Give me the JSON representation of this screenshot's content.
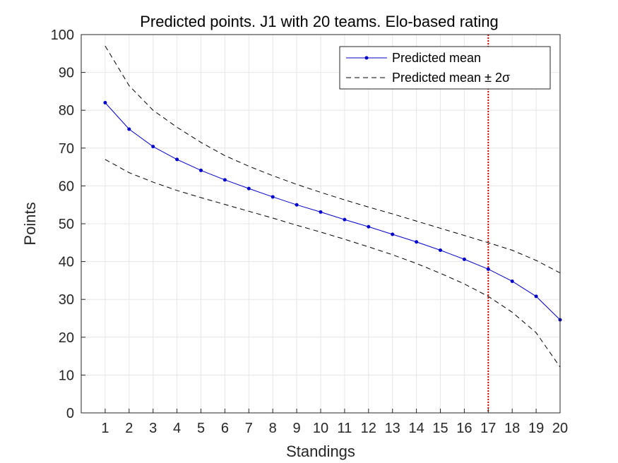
{
  "chart_data": {
    "type": "line",
    "title": "Predicted points. J1 with 20 teams. Elo-based rating",
    "xlabel": "Standings",
    "ylabel": "Points",
    "xlim": [
      0,
      20
    ],
    "ylim": [
      0,
      100
    ],
    "xticks": [
      1,
      2,
      3,
      4,
      5,
      6,
      7,
      8,
      9,
      10,
      11,
      12,
      13,
      14,
      15,
      16,
      17,
      18,
      19,
      20
    ],
    "yticks": [
      0,
      10,
      20,
      30,
      40,
      50,
      60,
      70,
      80,
      90,
      100
    ],
    "grid": true,
    "legend_position": "top-right",
    "x": [
      1,
      2,
      3,
      4,
      5,
      6,
      7,
      8,
      9,
      10,
      11,
      12,
      13,
      14,
      15,
      16,
      17,
      18,
      19,
      20
    ],
    "series": [
      {
        "name": "Predicted mean",
        "style": "solid-with-markers",
        "color": "#0000cc",
        "values": [
          82,
          75,
          70.4,
          67,
          64.1,
          61.6,
          59.3,
          57.1,
          55,
          53.1,
          51.1,
          49.2,
          47.2,
          45.2,
          43,
          40.6,
          38,
          34.8,
          30.8,
          24.6
        ]
      },
      {
        "name": "Predicted mean ± 2σ",
        "style": "dashed",
        "color": "#000000",
        "values": [
          97,
          86.5,
          80,
          75.5,
          71.5,
          68,
          65.2,
          62.7,
          60.4,
          58.3,
          56.3,
          54.4,
          52.6,
          50.7,
          48.8,
          46.9,
          45,
          43,
          40.3,
          37
        ]
      },
      {
        "name": "",
        "style": "dashed",
        "color": "#000000",
        "values": [
          67,
          63.5,
          61,
          58.8,
          56.9,
          55.1,
          53.3,
          51.5,
          49.6,
          47.8,
          45.9,
          43.9,
          41.8,
          39.5,
          36.9,
          34.1,
          30.8,
          26.6,
          21.2,
          12.1
        ]
      }
    ],
    "vline": {
      "x": 17,
      "color": "#cc0000",
      "style": "dotted"
    },
    "legend": [
      {
        "label": "Predicted mean",
        "style": "solid-with-markers",
        "color": "#0000cc"
      },
      {
        "label": "Predicted mean ± 2σ",
        "style": "dashed",
        "color": "#000000"
      }
    ]
  }
}
